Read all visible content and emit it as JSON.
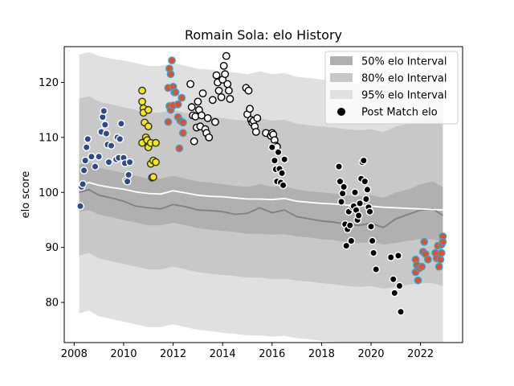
{
  "chart_data": {
    "type": "scatter",
    "title": "Romain Sola: elo History",
    "xlabel": "",
    "ylabel": "elo score",
    "xlim": [
      2007.6,
      2023.7
    ],
    "ylim": [
      72.7,
      126.5
    ],
    "xticks": [
      2008,
      2010,
      2012,
      2014,
      2016,
      2018,
      2020,
      2022
    ],
    "yticks": [
      80,
      90,
      100,
      110,
      120
    ],
    "legend_position": "upper right",
    "legend": [
      {
        "label": "50% elo Interval",
        "kind": "band",
        "color": "#b0b0b0"
      },
      {
        "label": "80% elo Interval",
        "kind": "band",
        "color": "#c8c8c8"
      },
      {
        "label": "95% elo Interval",
        "kind": "band",
        "color": "#e0e0e0"
      },
      {
        "label": "Post Match elo",
        "kind": "marker",
        "color": "#000000"
      }
    ],
    "series_lines": {
      "mean": {
        "color": "#ffffff",
        "x": [
          2008.2,
          2008.6,
          2009.0,
          2009.5,
          2010.0,
          2010.5,
          2011.0,
          2011.5,
          2012.0,
          2012.5,
          2013.0,
          2013.5,
          2014.0,
          2014.5,
          2015.0,
          2015.5,
          2016.0,
          2016.5,
          2017.0,
          2017.5,
          2018.0,
          2018.5,
          2019.0,
          2019.5,
          2020.0,
          2020.5,
          2021.0,
          2021.5,
          2022.0,
          2022.5,
          2022.9
        ],
        "y": [
          101.2,
          101.8,
          101.3,
          100.9,
          100.6,
          100.1,
          99.8,
          99.7,
          100.3,
          99.9,
          99.5,
          99.3,
          99.2,
          99.0,
          98.8,
          98.8,
          98.7,
          98.9,
          98.4,
          98.2,
          98.0,
          97.9,
          97.7,
          97.6,
          97.5,
          97.3,
          97.2,
          97.1,
          97.0,
          96.9,
          96.8
        ]
      },
      "median": {
        "color": "#808080",
        "x": [
          2008.2,
          2008.6,
          2009.0,
          2009.5,
          2010.0,
          2010.5,
          2011.0,
          2011.5,
          2012.0,
          2012.5,
          2013.0,
          2013.5,
          2014.0,
          2014.5,
          2015.0,
          2015.5,
          2016.0,
          2016.5,
          2017.0,
          2017.5,
          2018.0,
          2018.5,
          2019.0,
          2019.5,
          2020.0,
          2020.5,
          2021.0,
          2021.5,
          2022.0,
          2022.5,
          2022.9
        ],
        "y": [
          100.0,
          100.5,
          99.5,
          99.0,
          98.4,
          97.5,
          97.2,
          97.0,
          97.8,
          97.4,
          96.8,
          96.7,
          96.5,
          96.0,
          96.2,
          97.2,
          96.3,
          96.8,
          95.6,
          95.2,
          94.8,
          94.6,
          94.2,
          94.0,
          94.4,
          93.6,
          95.2,
          96.0,
          96.8,
          97.0,
          95.8
        ]
      }
    },
    "bands": {
      "x": [
        2008.2,
        2008.6,
        2009.0,
        2009.5,
        2010.0,
        2010.5,
        2011.0,
        2011.5,
        2012.0,
        2012.5,
        2013.0,
        2013.5,
        2014.0,
        2014.5,
        2015.0,
        2015.5,
        2016.0,
        2016.5,
        2017.0,
        2017.5,
        2018.0,
        2018.5,
        2019.0,
        2019.5,
        2020.0,
        2020.5,
        2021.0,
        2021.5,
        2022.0,
        2022.5,
        2022.9
      ],
      "p50": {
        "lower": [
          96.5,
          96.8,
          96.0,
          95.5,
          95.0,
          94.5,
          94.0,
          94.0,
          94.5,
          94.0,
          93.5,
          93.2,
          93.0,
          92.8,
          92.5,
          92.5,
          92.3,
          92.4,
          92.0,
          91.8,
          91.5,
          91.3,
          91.0,
          90.8,
          91.0,
          90.5,
          90.8,
          91.2,
          91.5,
          91.5,
          91.0
        ],
        "upper": [
          105.0,
          105.5,
          104.5,
          104.0,
          103.5,
          103.0,
          102.5,
          102.5,
          103.0,
          102.5,
          102.0,
          101.8,
          101.5,
          101.2,
          101.0,
          101.5,
          101.0,
          101.2,
          100.5,
          100.2,
          100.0,
          99.8,
          99.5,
          99.3,
          99.5,
          99.0,
          100.0,
          100.5,
          101.5,
          102.0,
          101.0
        ]
      },
      "p80": {
        "lower": [
          88.5,
          89.0,
          88.0,
          87.5,
          87.0,
          86.5,
          86.0,
          86.0,
          86.5,
          86.0,
          85.5,
          85.2,
          85.0,
          84.8,
          84.5,
          84.5,
          84.2,
          84.3,
          84.0,
          83.8,
          83.5,
          83.3,
          83.0,
          82.8,
          83.0,
          82.5,
          82.8,
          83.2,
          83.5,
          83.5,
          83.0
        ],
        "upper": [
          117.0,
          117.5,
          116.5,
          116.0,
          115.5,
          115.0,
          114.5,
          114.5,
          115.0,
          114.5,
          114.0,
          113.8,
          113.5,
          113.2,
          113.0,
          113.5,
          113.0,
          113.2,
          112.5,
          112.2,
          112.0,
          111.8,
          111.5,
          111.3,
          111.5,
          111.0,
          112.0,
          112.5,
          113.5,
          114.0,
          113.0
        ]
      },
      "p95": {
        "lower": [
          78.0,
          78.5,
          77.5,
          77.0,
          76.5,
          76.0,
          75.5,
          75.5,
          76.0,
          75.5,
          75.0,
          74.8,
          74.5,
          74.3,
          74.0,
          74.0,
          73.8,
          73.9,
          73.5,
          73.3,
          73.0,
          72.9,
          72.8,
          72.8,
          72.8,
          72.8,
          72.8,
          72.8,
          72.8,
          72.8,
          72.8
        ],
        "upper": [
          125.0,
          125.5,
          124.8,
          124.3,
          124.0,
          123.5,
          123.0,
          123.0,
          123.5,
          123.0,
          122.5,
          122.3,
          122.0,
          121.8,
          121.5,
          122.0,
          121.5,
          121.7,
          121.0,
          120.8,
          120.5,
          120.3,
          120.0,
          119.8,
          120.0,
          119.5,
          120.5,
          121.0,
          122.0,
          122.5,
          121.5
        ]
      }
    },
    "point_groups": [
      {
        "name": "",
        "fill": "#2e4a87",
        "edge": "#ffffff",
        "points": [
          [
            2008.25,
            97.5
          ],
          [
            2008.3,
            101
          ],
          [
            2008.35,
            101.5
          ],
          [
            2008.4,
            104
          ],
          [
            2008.45,
            105.8
          ],
          [
            2008.5,
            108.2
          ],
          [
            2008.55,
            109.7
          ],
          [
            2008.7,
            106.5
          ],
          [
            2008.85,
            104.7
          ],
          [
            2009.0,
            106.5
          ],
          [
            2009.1,
            111
          ],
          [
            2009.15,
            113.7
          ],
          [
            2009.2,
            114.8
          ],
          [
            2009.25,
            112.3
          ],
          [
            2009.3,
            110.7
          ],
          [
            2009.35,
            108.7
          ],
          [
            2009.4,
            105.5
          ],
          [
            2009.5,
            108.5
          ],
          [
            2009.7,
            106
          ],
          [
            2009.75,
            110
          ],
          [
            2009.8,
            106.3
          ],
          [
            2009.85,
            109.7
          ],
          [
            2009.9,
            112.5
          ],
          [
            2010.0,
            106.3
          ],
          [
            2010.05,
            105.3
          ],
          [
            2010.1,
            102.2
          ],
          [
            2010.15,
            102
          ],
          [
            2010.2,
            103.2
          ],
          [
            2010.25,
            105.5
          ]
        ]
      },
      {
        "name": "",
        "fill": "#f5e623",
        "edge": "#303030",
        "points": [
          [
            2010.75,
            118.5
          ],
          [
            2010.75,
            116.5
          ],
          [
            2010.8,
            115.3
          ],
          [
            2010.85,
            112.7
          ],
          [
            2010.75,
            109
          ],
          [
            2010.8,
            114.5
          ],
          [
            2010.9,
            110
          ],
          [
            2010.95,
            109.5
          ],
          [
            2011.0,
            115
          ],
          [
            2011.0,
            112
          ],
          [
            2011.0,
            108.2
          ],
          [
            2011.1,
            109
          ],
          [
            2011.1,
            105.2
          ],
          [
            2011.15,
            102.7
          ],
          [
            2011.2,
            105.8
          ],
          [
            2011.3,
            105.5
          ],
          [
            2011.3,
            109
          ],
          [
            2011.2,
            102.8
          ]
        ]
      },
      {
        "name": "",
        "fill": "#d9532b",
        "edge": "#3fa0d0",
        "points": [
          [
            2011.8,
            119
          ],
          [
            2011.85,
            122.5
          ],
          [
            2011.9,
            121.5
          ],
          [
            2011.95,
            124
          ],
          [
            2012.0,
            119.2
          ],
          [
            2012.05,
            118.2
          ],
          [
            2011.8,
            112.8
          ],
          [
            2011.85,
            115.7
          ],
          [
            2011.9,
            115
          ],
          [
            2012.0,
            115.8
          ],
          [
            2012.1,
            118.2
          ],
          [
            2012.2,
            113.7
          ],
          [
            2012.2,
            116
          ],
          [
            2012.25,
            108
          ],
          [
            2012.3,
            113
          ],
          [
            2012.35,
            117.2
          ],
          [
            2012.4,
            110.8
          ],
          [
            2012.4,
            112.7
          ],
          [
            2021.8,
            85.5
          ],
          [
            2021.8,
            87.8
          ],
          [
            2021.85,
            86.8
          ],
          [
            2021.9,
            84
          ],
          [
            2021.95,
            86.2
          ],
          [
            2022.05,
            86.5
          ],
          [
            2022.1,
            89.2
          ],
          [
            2022.15,
            91
          ],
          [
            2022.2,
            88.8
          ],
          [
            2022.3,
            87.8
          ],
          [
            2022.6,
            89
          ],
          [
            2022.65,
            88
          ],
          [
            2022.7,
            90.3
          ],
          [
            2022.75,
            86.5
          ],
          [
            2022.8,
            87.8
          ],
          [
            2022.85,
            90.5
          ],
          [
            2022.85,
            89
          ],
          [
            2022.9,
            92
          ],
          [
            2022.9,
            91
          ]
        ]
      },
      {
        "name": "",
        "fill": "#ffffff",
        "edge": "#000000",
        "points": [
          [
            2012.7,
            119.7
          ],
          [
            2012.75,
            115.5
          ],
          [
            2012.8,
            114
          ],
          [
            2012.85,
            109.3
          ],
          [
            2012.9,
            113.8
          ],
          [
            2012.95,
            111.8
          ],
          [
            2013.0,
            116.5
          ],
          [
            2013.05,
            115
          ],
          [
            2013.1,
            112
          ],
          [
            2013.15,
            114
          ],
          [
            2013.2,
            118
          ],
          [
            2013.3,
            111.5
          ],
          [
            2013.35,
            110.8
          ],
          [
            2013.4,
            113.5
          ],
          [
            2013.45,
            110
          ],
          [
            2013.6,
            116.8
          ],
          [
            2013.7,
            112.8
          ],
          [
            2013.75,
            121.3
          ],
          [
            2013.8,
            120
          ],
          [
            2013.85,
            118.5
          ],
          [
            2013.95,
            117.3
          ],
          [
            2014.0,
            120.5
          ],
          [
            2014.05,
            123
          ],
          [
            2014.1,
            121.5
          ],
          [
            2014.15,
            124.8
          ],
          [
            2014.2,
            119.7
          ],
          [
            2014.25,
            118.5
          ],
          [
            2014.3,
            117
          ],
          [
            2014.95,
            119
          ],
          [
            2015.0,
            114.2
          ],
          [
            2015.05,
            118.5
          ],
          [
            2015.1,
            115.2
          ],
          [
            2015.15,
            113.2
          ],
          [
            2015.2,
            112.7
          ],
          [
            2015.25,
            113
          ],
          [
            2015.3,
            112
          ],
          [
            2015.35,
            111
          ],
          [
            2015.4,
            113.5
          ],
          [
            2015.75,
            110.8
          ],
          [
            2015.95,
            110.3
          ],
          [
            2016.0,
            110.8
          ],
          [
            2016.05,
            110.5
          ],
          [
            2016.1,
            109.5
          ],
          [
            2016.15,
            108.5
          ],
          [
            2016.2,
            108.3
          ]
        ]
      },
      {
        "name": "",
        "fill": "#000000",
        "edge": "#ffffff",
        "points": [
          [
            2016.0,
            108.2
          ],
          [
            2016.1,
            105.8
          ],
          [
            2016.15,
            104.2
          ],
          [
            2016.2,
            102
          ],
          [
            2016.25,
            107.3
          ],
          [
            2016.3,
            104.3
          ],
          [
            2016.35,
            101.8
          ],
          [
            2016.4,
            103.5
          ],
          [
            2016.45,
            101.3
          ],
          [
            2016.5,
            106
          ],
          [
            2018.7,
            104.7
          ],
          [
            2018.75,
            102
          ],
          [
            2018.8,
            98.3
          ],
          [
            2018.85,
            99.8
          ],
          [
            2018.9,
            101
          ],
          [
            2018.95,
            94.2
          ],
          [
            2019.0,
            90.3
          ],
          [
            2019.05,
            93.3
          ],
          [
            2019.1,
            96.5
          ],
          [
            2019.15,
            94
          ],
          [
            2019.2,
            91.2
          ],
          [
            2019.25,
            97.3
          ],
          [
            2019.3,
            97.5
          ],
          [
            2019.35,
            100
          ],
          [
            2019.4,
            96.8
          ],
          [
            2019.45,
            95
          ],
          [
            2019.5,
            95.8
          ],
          [
            2019.55,
            98
          ],
          [
            2019.6,
            102.5
          ],
          [
            2019.65,
            105.5
          ],
          [
            2019.7,
            105.8
          ],
          [
            2019.75,
            102
          ],
          [
            2019.8,
            98.8
          ],
          [
            2019.85,
            100.5
          ],
          [
            2019.9,
            97.3
          ],
          [
            2019.95,
            96.5
          ],
          [
            2020.0,
            93.8
          ],
          [
            2020.05,
            91.2
          ],
          [
            2020.1,
            89
          ],
          [
            2020.2,
            86
          ],
          [
            2020.8,
            88.2
          ],
          [
            2020.9,
            84.2
          ],
          [
            2020.95,
            81.7
          ],
          [
            2021.1,
            88.5
          ],
          [
            2021.15,
            83
          ],
          [
            2021.2,
            78.3
          ]
        ]
      }
    ]
  }
}
